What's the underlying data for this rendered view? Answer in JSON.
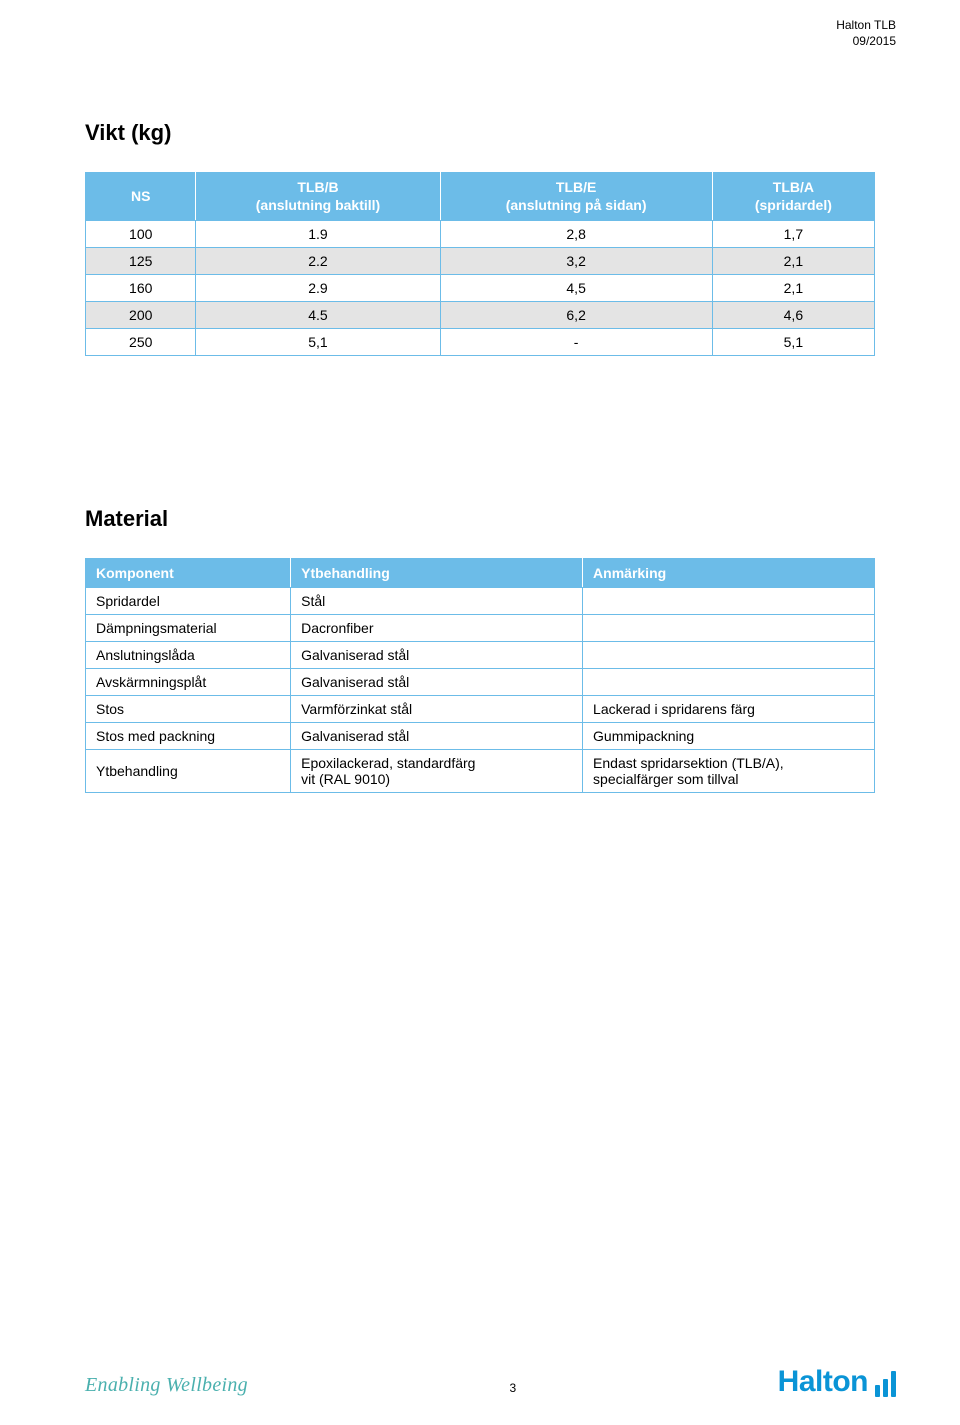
{
  "header": {
    "line1": "Halton TLB",
    "line2": "09/2015"
  },
  "section1": {
    "title": "Vikt (kg)",
    "columns": [
      "NS",
      "TLB/B\n(anslutning baktill)",
      "TLB/E\n(anslutning på sidan)",
      "TLB/A\n(spridardel)"
    ],
    "rows": [
      [
        "100",
        "1.9",
        "2,8",
        "1,7"
      ],
      [
        "125",
        "2.2",
        "3,2",
        "2,1"
      ],
      [
        "160",
        "2.9",
        "4,5",
        "2,1"
      ],
      [
        "200",
        "4.5",
        "6,2",
        "4,6"
      ],
      [
        "250",
        "5,1",
        "-",
        "5,1"
      ]
    ],
    "alt_row_indices": [
      1,
      3
    ],
    "header_bg": "#6cbce8",
    "header_fg": "#ffffff",
    "row_bg": "#ffffff",
    "alt_row_bg": "#e4e4e4",
    "border_color": "#6cbce8"
  },
  "section2": {
    "title": "Material",
    "columns": [
      "Komponent",
      "Ytbehandling",
      "Anmärking"
    ],
    "rows": [
      [
        "Spridardel",
        "Stål",
        ""
      ],
      [
        "Dämpningsmaterial",
        "Dacronfiber",
        ""
      ],
      [
        "Anslutningslåda",
        "Galvaniserad stål",
        ""
      ],
      [
        "Avskärmningsplåt",
        "Galvaniserad stål",
        ""
      ],
      [
        "Stos",
        "Varmförzinkat stål",
        "Lackerad i spridarens färg"
      ],
      [
        "Stos med packning",
        "Galvaniserad stål",
        "Gummipackning"
      ],
      [
        "Ytbehandling",
        "Epoxilackerad, standardfärg\nvit (RAL 9010)",
        "Endast spridarsektion (TLB/A),\nspecialfärger som tillval"
      ]
    ],
    "header_bg": "#6cbce8",
    "header_fg": "#ffffff",
    "row_bg": "#ffffff",
    "border_color": "#6cbce8"
  },
  "footer": {
    "tagline": "Enabling Wellbeing",
    "tagline_color": "#4ab0ae",
    "page_number": "3",
    "logo_text": "Halton",
    "logo_color": "#0a94d6",
    "logo_bar_heights": [
      12,
      18,
      26
    ]
  }
}
